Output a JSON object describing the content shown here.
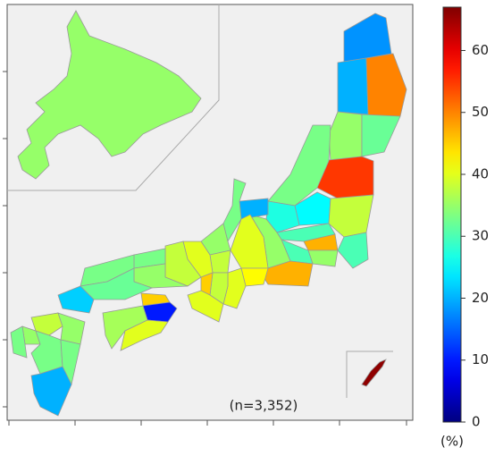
{
  "chart_data": {
    "type": "choropleth",
    "annotation": "(n=3,352)",
    "values": [
      35,
      18,
      20,
      50,
      35,
      32,
      55,
      33,
      25,
      27,
      38,
      30,
      30,
      47,
      35,
      30,
      35,
      20,
      33,
      40,
      47,
      42,
      35,
      38,
      40,
      40,
      38,
      45,
      40,
      38,
      33,
      35,
      33,
      32,
      22,
      45,
      10,
      36,
      40,
      38,
      35,
      33,
      35,
      33,
      33,
      20,
      66
    ],
    "colorbar": {
      "label": "(%)",
      "lim": [
        0,
        67
      ],
      "ticks": [
        0,
        10,
        20,
        30,
        40,
        50,
        60
      ],
      "colormap": "jet"
    }
  }
}
